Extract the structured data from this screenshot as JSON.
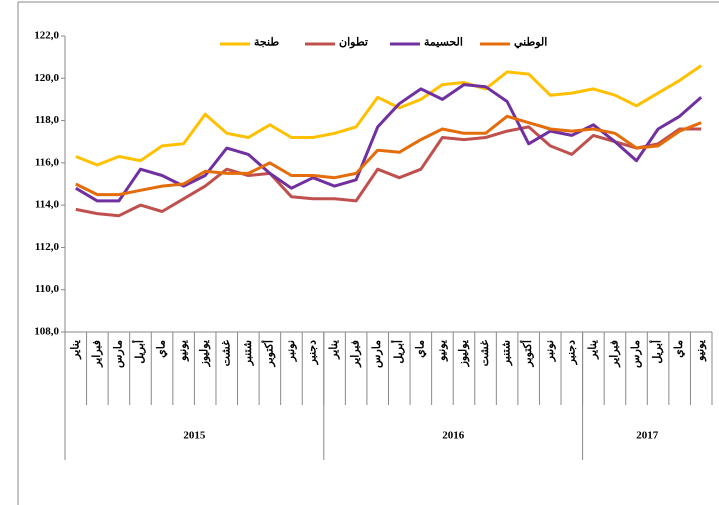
{
  "chart_data": {
    "type": "line",
    "category_groups": [
      {
        "label": "2015",
        "categories": [
          "يناير",
          "فبراير",
          "مارس",
          "أبريل",
          "ماي",
          "يونيو",
          "يوليوز",
          "غشت",
          "شتنبر",
          "أكتوبر",
          "نونبر",
          "دجنبر"
        ]
      },
      {
        "label": "2016",
        "categories": [
          "يناير",
          "فبراير",
          "مارس",
          "أبريل",
          "ماي",
          "يونيو",
          "يوليوز",
          "غشت",
          "شتنبر",
          "أكتوبر",
          "نونبر",
          "دجنبر"
        ]
      },
      {
        "label": "2017",
        "categories": [
          "يناير",
          "فبراير",
          "مارس",
          "أبريل",
          "ماي",
          "يونيو"
        ]
      }
    ],
    "series": [
      {
        "name": "طنجة",
        "color": "#FFC000",
        "values": [
          116.3,
          115.9,
          116.3,
          116.1,
          116.8,
          116.9,
          118.3,
          117.4,
          117.2,
          117.8,
          117.2,
          117.2,
          117.4,
          117.7,
          119.1,
          118.6,
          119.0,
          119.7,
          119.8,
          119.5,
          120.3,
          120.2,
          119.2,
          119.3,
          119.5,
          119.2,
          118.7,
          119.3,
          119.9,
          120.6
        ]
      },
      {
        "name": "تطوان",
        "color": "#C0504D",
        "values": [
          113.8,
          113.6,
          113.5,
          114.0,
          113.7,
          114.3,
          114.9,
          115.7,
          115.4,
          115.5,
          114.4,
          114.3,
          114.3,
          114.2,
          115.7,
          115.3,
          115.7,
          117.2,
          117.1,
          117.2,
          117.5,
          117.7,
          116.8,
          116.4,
          117.3,
          117.0,
          116.7,
          116.9,
          117.6,
          117.6
        ]
      },
      {
        "name": "الحسيمة",
        "color": "#7030A0",
        "values": [
          114.8,
          114.2,
          114.2,
          115.7,
          115.4,
          114.9,
          115.4,
          116.7,
          116.4,
          115.5,
          114.8,
          115.3,
          114.9,
          115.2,
          117.7,
          118.8,
          119.5,
          119.0,
          119.7,
          119.6,
          118.9,
          116.9,
          117.5,
          117.3,
          117.8,
          117.0,
          116.1,
          117.6,
          118.2,
          119.1
        ]
      },
      {
        "name": "الوطني",
        "color": "#E46C0A",
        "values": [
          115.0,
          114.5,
          114.5,
          114.7,
          114.9,
          115.0,
          115.6,
          115.5,
          115.5,
          116.0,
          115.4,
          115.4,
          115.3,
          115.5,
          116.6,
          116.5,
          117.1,
          117.6,
          117.4,
          117.4,
          118.2,
          117.9,
          117.6,
          117.5,
          117.6,
          117.4,
          116.7,
          116.8,
          117.5,
          117.9
        ]
      }
    ],
    "ylim": [
      108,
      122
    ],
    "yticks": [
      {
        "value": 108,
        "label": "108,0"
      },
      {
        "value": 110,
        "label": "110,0"
      },
      {
        "value": 112,
        "label": "112,0"
      },
      {
        "value": 114,
        "label": "114,0"
      },
      {
        "value": 116,
        "label": "116,0"
      },
      {
        "value": 118,
        "label": "118,0"
      },
      {
        "value": 120,
        "label": "120,0"
      },
      {
        "value": 122,
        "label": "122,0"
      }
    ],
    "legend": "top"
  }
}
